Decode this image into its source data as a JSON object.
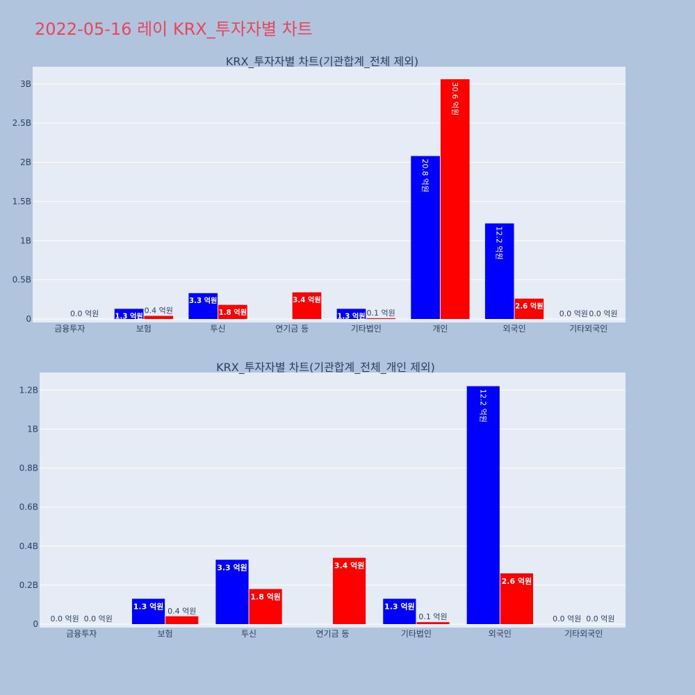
{
  "page": {
    "title": "2022-05-16 레이 KRX_투자자별 차트"
  },
  "colors": {
    "buy": "#0000ff",
    "sell": "#ff0000",
    "plot_bg": "#e5ecf6",
    "page_bg": "#b0c4de",
    "title": "#e8455a"
  },
  "chart_data": [
    {
      "type": "bar",
      "title": "KRX_투자자별 차트(기관합계_전체 제외)",
      "categories": [
        "금융투자",
        "보험",
        "투신",
        "연기금 등",
        "기타법인",
        "개인",
        "외국인",
        "기타외국인"
      ],
      "series": [
        {
          "values": [
            0,
            130000000,
            330000000,
            0,
            130000000,
            2080000000,
            1220000000,
            0
          ],
          "labels": [
            "",
            "1.3 억원",
            "3.3 억원",
            "",
            "1.3 억원",
            "20.8 억원",
            "12.2 억원",
            "0.0 억원"
          ]
        },
        {
          "values": [
            0,
            40000000,
            180000000,
            340000000,
            10000000,
            3060000000,
            260000000,
            0
          ],
          "labels": [
            "0.0 억원",
            "0.4 억원",
            "1.8 억원",
            "3.4 억원",
            "0.1 억원",
            "30.6 억원",
            "2.6 억원",
            "0.0 억원"
          ]
        }
      ],
      "yticks": [
        0,
        500000000,
        1000000000,
        1500000000,
        2000000000,
        2500000000,
        3000000000
      ],
      "ytick_labels": [
        "0",
        "0.5B",
        "1B",
        "1.5B",
        "2B",
        "2.5B",
        "3B"
      ],
      "ylim": [
        0,
        3220000000
      ],
      "grid": true
    },
    {
      "type": "bar",
      "title": "KRX_투자자별 차트(기관합계_전체_개인 제외)",
      "categories": [
        "금융투자",
        "보험",
        "투신",
        "연기금 등",
        "기타법인",
        "외국인",
        "기타외국인"
      ],
      "series": [
        {
          "values": [
            0,
            130000000,
            330000000,
            0,
            130000000,
            1220000000,
            0
          ],
          "labels": [
            "0.0 억원",
            "1.3 억원",
            "3.3 억원",
            "",
            "1.3 억원",
            "12.2 억원",
            "0.0 억원"
          ]
        },
        {
          "values": [
            0,
            40000000,
            180000000,
            340000000,
            10000000,
            260000000,
            0
          ],
          "labels": [
            "0.0 억원",
            "0.4 억원",
            "1.8 억원",
            "3.4 억원",
            "0.1 억원",
            "2.6 억원",
            "0.0 억원"
          ]
        }
      ],
      "yticks": [
        0,
        200000000,
        400000000,
        600000000,
        800000000,
        1000000000,
        1200000000
      ],
      "ytick_labels": [
        "0",
        "0.2B",
        "0.4B",
        "0.6B",
        "0.8B",
        "1B",
        "1.2B"
      ],
      "ylim": [
        0,
        1290000000
      ],
      "grid": true
    }
  ]
}
